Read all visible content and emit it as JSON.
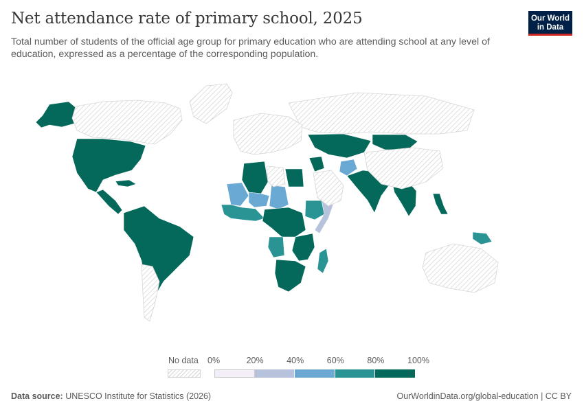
{
  "header": {
    "title": "Net attendance rate of primary school, 2025",
    "subtitle": "Total number of students of the official age group for primary education who are attending school at any level of education, expressed as a percentage of the corresponding population."
  },
  "logo": {
    "line1": "Our World",
    "line2": "in Data",
    "background": "#002147",
    "accent": "#ce261e"
  },
  "legend": {
    "no_data_label": "No data",
    "ticks": [
      "0%",
      "20%",
      "40%",
      "60%",
      "80%",
      "100%"
    ],
    "bins": [
      {
        "range": "0–20%",
        "color": "#f3eef7"
      },
      {
        "range": "20–40%",
        "color": "#b7c3dd"
      },
      {
        "range": "40–60%",
        "color": "#6aa9d4"
      },
      {
        "range": "60–80%",
        "color": "#2a9494"
      },
      {
        "range": "80–100%",
        "color": "#04695a"
      }
    ],
    "no_data_color": "#e6e6e6"
  },
  "footer": {
    "source_label": "Data source:",
    "source_text": "UNESCO Institute for Statistics (2026)",
    "credit": "OurWorldinData.org/global-education | CC BY"
  },
  "chart_data": {
    "type": "choropleth",
    "year": 2025,
    "unit": "%",
    "legend_placement": "bottom-center",
    "regions": [
      {
        "name": "North America (USA, Mexico)",
        "bin": "80–100%"
      },
      {
        "name": "Central America",
        "bin": "80–100%"
      },
      {
        "name": "Caribbean",
        "bin": "80–100%"
      },
      {
        "name": "South America",
        "bin": "80–100%"
      },
      {
        "name": "Alaska",
        "bin": "80–100%"
      },
      {
        "name": "Algeria",
        "bin": "80–100%"
      },
      {
        "name": "Egypt",
        "bin": "80–100%"
      },
      {
        "name": "Mali",
        "bin": "40–60%"
      },
      {
        "name": "Niger",
        "bin": "40–60%"
      },
      {
        "name": "Chad",
        "bin": "40–60%"
      },
      {
        "name": "Somalia",
        "bin": "20–40%"
      },
      {
        "name": "Ethiopia",
        "bin": "60–80%"
      },
      {
        "name": "West Africa",
        "bin": "60–80%"
      },
      {
        "name": "Central Africa",
        "bin": "80–100%"
      },
      {
        "name": "Angola",
        "bin": "60–80%"
      },
      {
        "name": "East Africa",
        "bin": "80–100%"
      },
      {
        "name": "Southern Africa",
        "bin": "80–100%"
      },
      {
        "name": "Madagascar",
        "bin": "60–80%"
      },
      {
        "name": "Afghanistan",
        "bin": "40–60%"
      },
      {
        "name": "Central Asia",
        "bin": "80–100%"
      },
      {
        "name": "Mongolia",
        "bin": "80–100%"
      },
      {
        "name": "South Asia",
        "bin": "80–100%"
      },
      {
        "name": "Southeast Asia",
        "bin": "80–100%"
      },
      {
        "name": "Philippines",
        "bin": "80–100%"
      },
      {
        "name": "Papua New Guinea",
        "bin": "60–80%"
      },
      {
        "name": "Belarus",
        "bin": "80–100%"
      },
      {
        "name": "Iraq",
        "bin": "80–100%"
      },
      {
        "name": "Russia",
        "bin": "No data"
      },
      {
        "name": "Canada",
        "bin": "No data"
      },
      {
        "name": "Greenland",
        "bin": "No data"
      },
      {
        "name": "Europe",
        "bin": "No data"
      },
      {
        "name": "China",
        "bin": "No data"
      },
      {
        "name": "Australia",
        "bin": "No data"
      },
      {
        "name": "Argentina",
        "bin": "No data"
      },
      {
        "name": "Arabian Peninsula",
        "bin": "No data"
      },
      {
        "name": "Libya",
        "bin": "No data"
      }
    ]
  }
}
